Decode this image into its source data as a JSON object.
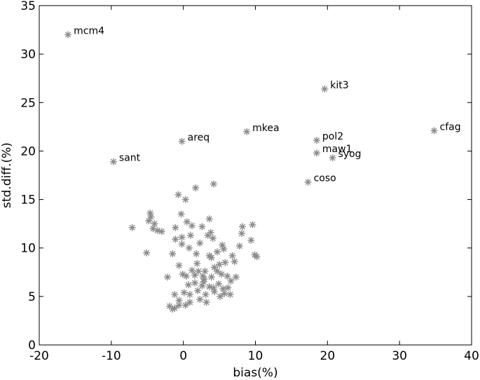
{
  "chart_data": {
    "type": "scatter",
    "title": "",
    "xlabel": "bias(%)",
    "ylabel": "std.diff.(%)",
    "xlim": [
      -20,
      40
    ],
    "ylim": [
      0,
      35
    ],
    "xticks": [
      "-20",
      "-10",
      "0",
      "10",
      "20",
      "30",
      "40"
    ],
    "yticks": [
      "0",
      "5",
      "10",
      "15",
      "20",
      "25",
      "30",
      "35"
    ],
    "grid": false,
    "legend": "none",
    "marker": "asterisk",
    "marker_color": "#8c8c8c",
    "labeled_points": [
      {
        "label": "mcm4",
        "x": -16.0,
        "y": 32.0
      },
      {
        "label": "kit3",
        "x": 19.6,
        "y": 26.4
      },
      {
        "label": "cfag",
        "x": 34.8,
        "y": 22.1
      },
      {
        "label": "mkea",
        "x": 8.8,
        "y": 22.0
      },
      {
        "label": "pol2",
        "x": 18.5,
        "y": 21.1
      },
      {
        "label": "areq",
        "x": -0.2,
        "y": 21.0
      },
      {
        "label": "maw1",
        "x": 18.5,
        "y": 19.8
      },
      {
        "label": "syog",
        "x": 20.7,
        "y": 19.3
      },
      {
        "label": "sant",
        "x": -9.7,
        "y": 18.9
      },
      {
        "label": "coso",
        "x": 17.3,
        "y": 16.8
      }
    ],
    "points": [
      [
        -0.7,
        15.5
      ],
      [
        1.7,
        16.2
      ],
      [
        4.2,
        16.6
      ],
      [
        0.3,
        15.0
      ],
      [
        -4.6,
        13.6
      ],
      [
        -4.5,
        13.2
      ],
      [
        -0.3,
        13.5
      ],
      [
        -4.0,
        12.5
      ],
      [
        -4.8,
        12.8
      ],
      [
        -3.6,
        11.8
      ],
      [
        -3.0,
        11.7
      ],
      [
        -7.1,
        12.1
      ],
      [
        -4.2,
        12.0
      ],
      [
        -1.1,
        12.1
      ],
      [
        0.5,
        12.7
      ],
      [
        1.2,
        12.3
      ],
      [
        2.6,
        12.2
      ],
      [
        3.6,
        13.0
      ],
      [
        -0.2,
        11.1
      ],
      [
        1.0,
        11.3
      ],
      [
        3.4,
        11.3
      ],
      [
        3.8,
        11.6
      ],
      [
        4.1,
        11.0
      ],
      [
        8.2,
        12.2
      ],
      [
        9.6,
        12.4
      ],
      [
        8.1,
        11.5
      ],
      [
        -1.1,
        10.9
      ],
      [
        -0.2,
        10.4
      ],
      [
        0.8,
        10.0
      ],
      [
        2.3,
        10.5
      ],
      [
        5.4,
        10.3
      ],
      [
        7.8,
        10.2
      ],
      [
        9.4,
        10.8
      ],
      [
        -5.1,
        9.5
      ],
      [
        -1.5,
        9.4
      ],
      [
        1.8,
        9.4
      ],
      [
        3.6,
        9.2
      ],
      [
        4.7,
        9.6
      ],
      [
        5.6,
        9.9
      ],
      [
        6.8,
        9.2
      ],
      [
        9.9,
        9.3
      ],
      [
        10.2,
        9.1
      ],
      [
        -0.6,
        8.2
      ],
      [
        1.2,
        7.7
      ],
      [
        2.1,
        7.6
      ],
      [
        3.0,
        7.6
      ],
      [
        4.3,
        8.0
      ],
      [
        5.0,
        8.3
      ],
      [
        5.8,
        8.5
      ],
      [
        7.1,
        8.6
      ],
      [
        -0.1,
        7.3
      ],
      [
        0.4,
        7.1
      ],
      [
        1.6,
        7.2
      ],
      [
        2.7,
        7.1
      ],
      [
        3.9,
        7.0
      ],
      [
        4.7,
        7.6
      ],
      [
        5.3,
        7.3
      ],
      [
        6.1,
        7.1
      ],
      [
        7.3,
        7.0
      ],
      [
        -2.2,
        7.0
      ],
      [
        0.7,
        6.2
      ],
      [
        1.6,
        6.4
      ],
      [
        2.8,
        6.5
      ],
      [
        3.6,
        6.0
      ],
      [
        4.2,
        5.9
      ],
      [
        4.9,
        6.3
      ],
      [
        5.5,
        5.8
      ],
      [
        6.2,
        5.9
      ],
      [
        0.1,
        5.4
      ],
      [
        0.9,
        5.2
      ],
      [
        2.0,
        5.6
      ],
      [
        3.1,
        5.2
      ],
      [
        4.3,
        5.5
      ],
      [
        5.1,
        5.0
      ],
      [
        5.7,
        5.3
      ],
      [
        6.5,
        5.2
      ],
      [
        -1.2,
        5.2
      ],
      [
        -0.6,
        4.6
      ],
      [
        0.9,
        4.4
      ],
      [
        2.3,
        4.7
      ],
      [
        3.2,
        4.4
      ],
      [
        -1.9,
        4.0
      ],
      [
        -1.5,
        3.7
      ],
      [
        -1.2,
        3.8
      ],
      [
        -0.6,
        4.1
      ],
      [
        0.3,
        4.1
      ],
      [
        2.9,
        6.8
      ],
      [
        1.9,
        8.4
      ],
      [
        3.9,
        9.0
      ],
      [
        6.6,
        6.6
      ],
      [
        2.6,
        6.1
      ]
    ]
  }
}
